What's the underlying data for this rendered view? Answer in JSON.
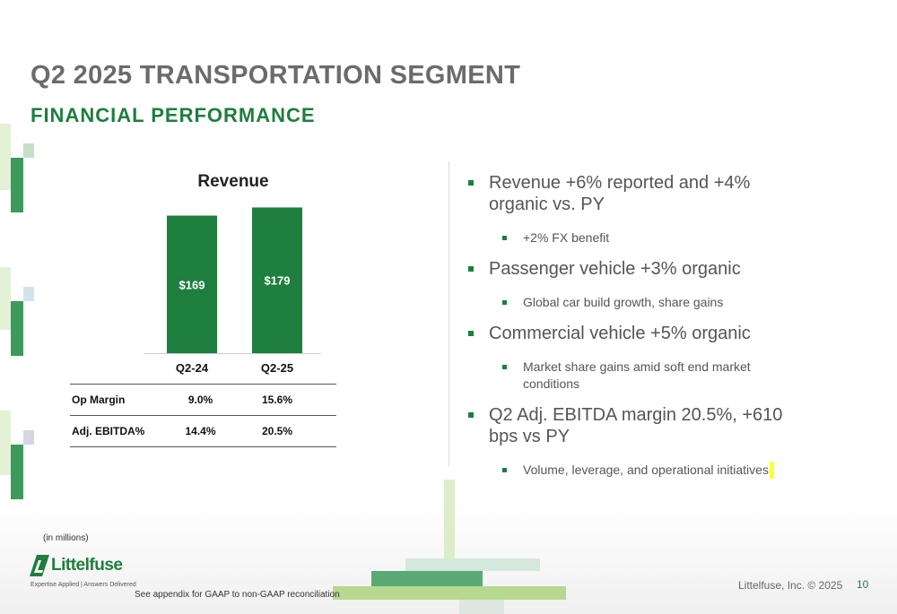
{
  "header": {
    "title": "Q2 2025 TRANSPORTATION SEGMENT",
    "subtitle": "FINANCIAL PERFORMANCE"
  },
  "colors": {
    "brand_green": "#1e7e3e",
    "title_gray": "#6b6b6b",
    "light_green": "#cfe8b8",
    "highlight_yellow": "#ffff33"
  },
  "chart_data": {
    "type": "bar",
    "title": "Revenue",
    "categories": [
      "Q2-24",
      "Q2-25"
    ],
    "values": [
      169,
      179
    ],
    "value_labels": [
      "$169",
      "$179"
    ],
    "ylim": [
      0,
      185
    ],
    "grid": false,
    "legend": "none",
    "bar_color": "#1e7e3e"
  },
  "metrics": [
    {
      "label": "Op Margin",
      "q2_24": "9.0%",
      "q2_25": "15.6%"
    },
    {
      "label": "Adj. EBITDA%",
      "q2_24": "14.4%",
      "q2_25": "20.5%"
    }
  ],
  "bullets": [
    {
      "level": 1,
      "text": "Revenue +6% reported and +4% organic vs. PY"
    },
    {
      "level": 2,
      "text": "+2% FX benefit"
    },
    {
      "level": 1,
      "text": "Passenger vehicle +3% organic"
    },
    {
      "level": 2,
      "text": "Global car build growth, share gains"
    },
    {
      "level": 1,
      "text": "Commercial vehicle +5% organic"
    },
    {
      "level": 2,
      "text": "Market share gains amid soft end market conditions"
    },
    {
      "level": 1,
      "text": "Q2 Adj. EBITDA margin 20.5%, +610 bps vs PY"
    },
    {
      "level": 2,
      "text": "Volume, leverage, and operational initiatives"
    }
  ],
  "footer": {
    "units_note": "(in millions)",
    "logo_name": "Littelfuse",
    "logo_tagline": "Expertise Applied | Answers Delivered",
    "footnote": "See appendix for GAAP to non-GAAP reconciliation",
    "copyright": "Littelfuse, Inc. © 2025",
    "page_number": "10"
  }
}
